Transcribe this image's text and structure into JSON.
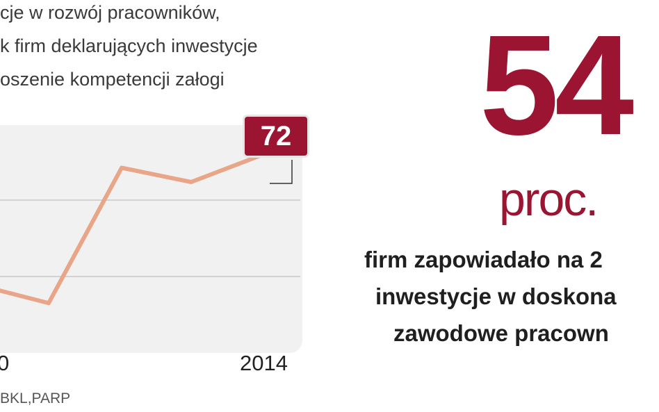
{
  "header": {
    "title_lines": [
      "cje w rozwój  pracowników,",
      "k firm deklarujących inwestycje",
      "oszenie kompetencji załogi"
    ]
  },
  "chart_data": {
    "type": "line",
    "x": [
      "",
      "",
      "",
      "",
      "2014"
    ],
    "values": [
      49,
      47,
      66,
      64,
      68
    ],
    "series_color": "#e8a587",
    "highlight": {
      "label": "72",
      "color": "#9b1532"
    },
    "x_tick_labels": [
      "0",
      "2014"
    ],
    "grid": true
  },
  "source": "BKL,PARP",
  "highlight_stat": {
    "number": "54",
    "unit": "proc.",
    "description_lines": [
      "firm zapowiadało na 2",
      "inwestycje w doskona",
      "zawodowe pracown"
    ],
    "color": "#9b1532"
  }
}
